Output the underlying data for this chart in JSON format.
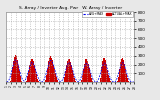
{
  "title": "S. Array / Inverter Avg. Pwr   W. Array / Inverter",
  "legend_avg_label": "AVG+MAX",
  "legend_actual_label": "ACTUAL+MAX",
  "background_color": "#e8e8e8",
  "plot_bg_color": "#ffffff",
  "grid_color": "#aaaaaa",
  "bar_color": "#cc0000",
  "avg_line_color": "#0000ee",
  "ylim": [
    0,
    800
  ],
  "yticks": [
    100,
    200,
    300,
    400,
    500,
    600,
    700,
    800
  ],
  "figsize": [
    1.6,
    1.0
  ],
  "dpi": 100,
  "peaks": [
    0,
    0,
    0,
    0,
    0,
    0,
    0,
    5,
    15,
    30,
    55,
    90,
    130,
    175,
    210,
    240,
    265,
    285,
    300,
    310,
    315,
    310,
    295,
    275,
    250,
    220,
    190,
    155,
    125,
    95,
    70,
    50,
    30,
    15,
    5,
    0,
    0,
    0,
    0,
    0,
    0,
    0,
    5,
    10,
    20,
    40,
    65,
    95,
    130,
    160,
    190,
    215,
    235,
    250,
    260,
    265,
    268,
    265,
    255,
    240,
    220,
    195,
    170,
    145,
    120,
    95,
    73,
    52,
    35,
    20,
    10,
    4,
    0,
    0,
    0,
    0,
    0,
    0,
    0,
    0,
    0,
    0,
    0,
    5,
    12,
    28,
    50,
    80,
    115,
    150,
    185,
    215,
    240,
    262,
    278,
    290,
    296,
    292,
    280,
    268,
    255,
    238,
    218,
    195,
    172,
    148,
    123,
    98,
    76,
    55,
    37,
    22,
    11,
    4,
    0,
    0,
    0,
    0,
    0,
    0,
    0,
    0,
    0,
    0,
    5,
    15,
    35,
    62,
    95,
    130,
    165,
    195,
    220,
    240,
    255,
    265,
    270,
    268,
    260,
    248,
    232,
    212,
    190,
    165,
    140,
    115,
    90,
    68,
    48,
    30,
    16,
    7,
    2,
    0,
    0,
    0,
    0,
    0,
    0,
    0,
    0,
    0,
    0,
    5,
    18,
    42,
    75,
    110,
    148,
    182,
    210,
    232,
    248,
    258,
    262,
    260,
    252,
    240,
    225,
    205,
    182,
    158,
    133,
    108,
    84,
    62,
    42,
    26,
    14,
    6,
    1,
    0,
    0,
    0,
    0,
    0,
    0,
    0,
    0,
    0,
    0,
    0,
    0,
    5,
    20,
    50,
    90,
    135,
    175,
    210,
    238,
    258,
    270,
    275,
    272,
    263,
    248,
    230,
    208,
    183,
    158,
    132,
    107,
    84,
    62,
    43,
    27,
    15,
    7,
    2,
    0,
    0,
    0,
    0,
    0,
    0,
    0,
    0,
    0,
    0,
    0,
    0,
    0,
    8,
    25,
    58,
    100,
    148,
    190,
    225,
    252,
    268,
    278,
    280,
    275,
    264,
    248,
    228,
    204,
    178,
    150,
    123,
    97,
    73,
    51,
    33,
    19,
    9,
    3,
    0,
    0,
    0,
    0,
    0,
    0,
    0,
    0,
    0,
    0,
    0
  ]
}
